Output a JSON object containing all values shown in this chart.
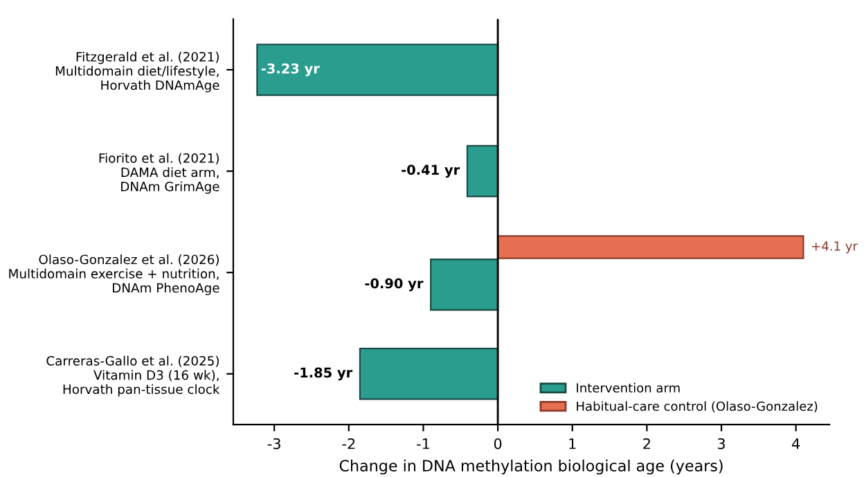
{
  "chart_data": {
    "type": "bar",
    "orientation": "horizontal",
    "categories": [
      "Fitzgerald et al. (2021)\nMultidomain diet/lifestyle,\nHorvath DNAmAge",
      "Fiorito et al. (2021)\nDAMA diet arm,\nDNAm GrimAge",
      "Olaso-Gonzalez et al. (2026)\nMultidomain exercise + nutrition,\nDNAm PhenoAge",
      "Carreras-Gallo et al. (2025)\nVitamin D3 (16 wk),\nHorvath pan-tissue clock"
    ],
    "series": [
      {
        "name": "Intervention arm",
        "color": "#2a9d8f",
        "values": [
          -3.23,
          -0.41,
          -0.9,
          -1.85
        ],
        "value_labels": [
          "-3.23 yr",
          "-0.41 yr",
          "-0.90 yr",
          "-1.85 yr"
        ]
      },
      {
        "name": "Habitual-care control (Olaso-Gonzalez)",
        "color": "#e76f51",
        "values": [
          null,
          null,
          4.1,
          null
        ],
        "value_labels": [
          null,
          null,
          "+4.1 yr",
          null
        ]
      }
    ],
    "xlabel": "Change in DNA methylation biological age (years)",
    "xlim": [
      -3.55,
      4.45
    ],
    "xticks": [
      -3,
      -2,
      -1,
      0,
      1,
      2,
      3,
      4
    ],
    "ref_lines": [
      {
        "axis": "x",
        "value": 0,
        "color": "#000000"
      }
    ],
    "legend": "bottom right",
    "grid": false
  }
}
